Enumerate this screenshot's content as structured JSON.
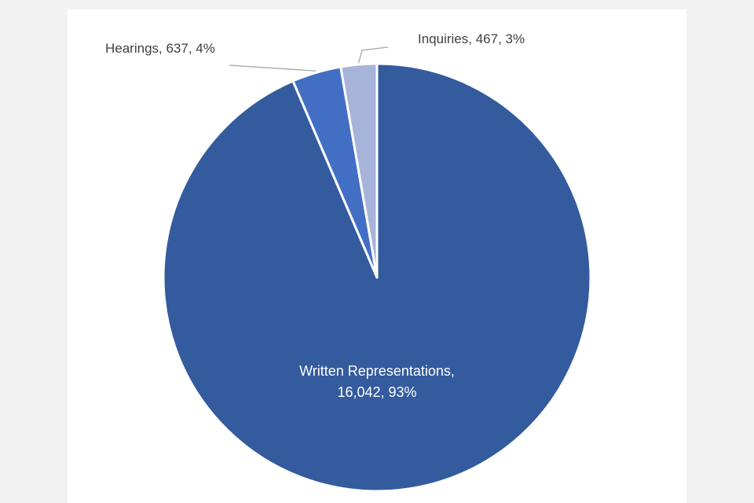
{
  "chart_data": {
    "type": "pie",
    "title": "",
    "slices": [
      {
        "label": "Written Representations",
        "value": 16042,
        "percent": "93%",
        "color": "#345b9e",
        "label_line1": "Written Representations,",
        "label_line2": "16,042,  93%"
      },
      {
        "label": "Hearings",
        "value": 637,
        "percent": "4%",
        "color": "#426fc4",
        "label_text": "Hearings, 637,  4%"
      },
      {
        "label": "Inquiries",
        "value": 467,
        "percent": "3%",
        "color": "#a7b4da",
        "label_text": "Inquiries, 467, 3%"
      }
    ],
    "start_angle": "12 o'clock",
    "direction": "clockwise",
    "legend": "none",
    "slice_border_color": "#ffffff",
    "leader_line_color": "#a6a6a6"
  }
}
